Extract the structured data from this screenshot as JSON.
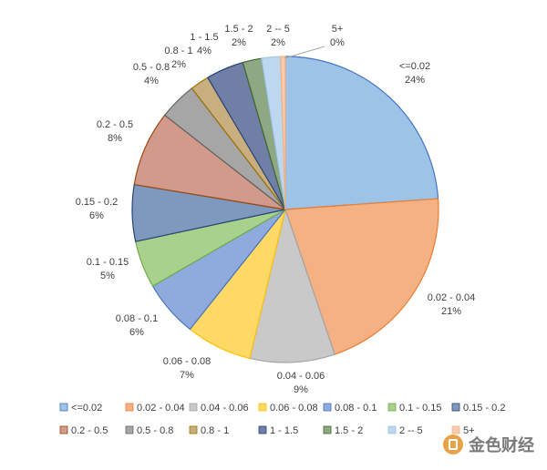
{
  "chart_data": {
    "type": "pie",
    "title": "",
    "legend_placement": "bottom",
    "slices": [
      {
        "label": "<=0.02",
        "display_label": "<=0.02",
        "value": 24,
        "pct": "24%",
        "color": "#9DC3E6",
        "stroke": "#4472C4"
      },
      {
        "label": "0.02 - 0.04",
        "display_label": "0.02 - 0.04",
        "value": 21,
        "pct": "21%",
        "color": "#F4B183",
        "stroke": "#ED7D31"
      },
      {
        "label": "0.04 - 0.06",
        "display_label": "0.04 - 0.06",
        "value": 9,
        "pct": "9%",
        "color": "#C9C9C9",
        "stroke": "#A5A5A5"
      },
      {
        "label": "0.06 - 0.08",
        "display_label": "0.06 - 0.08",
        "value": 7,
        "pct": "7%",
        "color": "#FFD966",
        "stroke": "#FFC000"
      },
      {
        "label": "0.08 - 0.1",
        "display_label": "0.08 - 0.1",
        "value": 6,
        "pct": "6%",
        "color": "#8FAADC",
        "stroke": "#4472C4"
      },
      {
        "label": "0.1 - 0.15",
        "display_label": "0.1 - 0.15",
        "value": 5,
        "pct": "5%",
        "color": "#A9D18E",
        "stroke": "#70AD47"
      },
      {
        "label": "0.15 - 0.2",
        "display_label": "0.15 - 0.2",
        "value": 6,
        "pct": "6%",
        "color": "#7F98BD",
        "stroke": "#264478"
      },
      {
        "label": "0.2 - 0.5",
        "display_label": "0.2 -  0.5",
        "value": 8,
        "pct": "8%",
        "color": "#D19A8B",
        "stroke": "#9E480E"
      },
      {
        "label": "0.5 - 0.8",
        "display_label": "0.5 - 0.8",
        "value": 4,
        "pct": "4%",
        "color": "#A6A6A6",
        "stroke": "#636363"
      },
      {
        "label": "0.8 - 1",
        "display_label": "0.8 - 1",
        "value": 2,
        "pct": "2%",
        "color": "#C9AE80",
        "stroke": "#997300"
      },
      {
        "label": "1 - 1.5",
        "display_label": "1 - 1.5",
        "value": 4,
        "pct": "4%",
        "color": "#6F7FA6",
        "stroke": "#264478"
      },
      {
        "label": "1.5 - 2",
        "display_label": "1.5 - 2",
        "value": 2,
        "pct": "2%",
        "color": "#8DA883",
        "stroke": "#43682B"
      },
      {
        "label": "2 -- 5",
        "display_label": "2 -- 5",
        "value": 2,
        "pct": "2%",
        "color": "#BDD7EE",
        "stroke": "#9DC3E6"
      },
      {
        "label": "5+",
        "display_label": "5+",
        "value": 0.5,
        "pct": "0%",
        "color": "#F8CBAD",
        "stroke": "#F4B183"
      }
    ]
  },
  "legend": [
    [
      "<=0.02",
      "0.02 - 0.04",
      "0.04 - 0.06",
      "0.06 - 0.08",
      "0.08 - 0.1",
      "0.1 - 0.15",
      "0.15 - 0.2"
    ],
    [
      "0.2 -  0.5",
      "0.5 - 0.8",
      "0.8 - 1",
      "1 - 1.5",
      "1.5 - 2",
      "2 -- 5",
      "5+"
    ]
  ],
  "watermark": {
    "text": "金色财经"
  }
}
